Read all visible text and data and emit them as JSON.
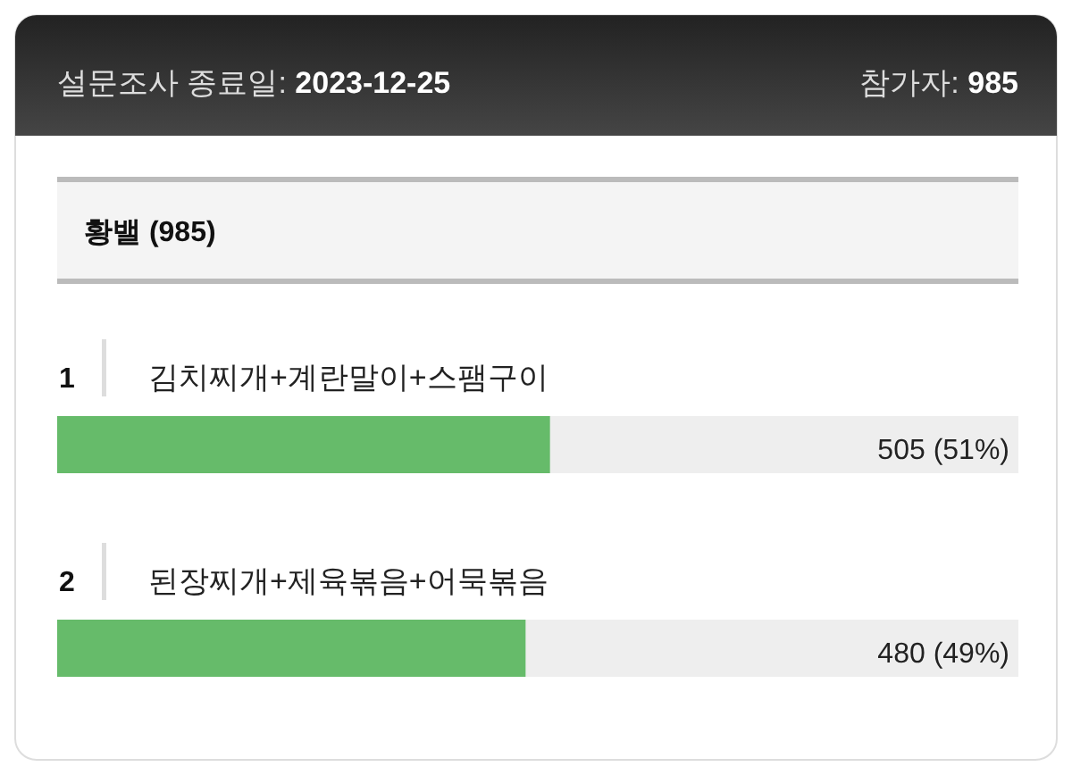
{
  "chart_data": {
    "type": "bar",
    "orientation": "horizontal",
    "title": "황밸 (985)",
    "categories": [
      "김치찌개+계란말이+스팸구이",
      "된장찌개+제육볶음+어묵볶음"
    ],
    "values": [
      505,
      480
    ],
    "color": "#66bb6a",
    "value_labels": [
      "505 (51%)",
      "480 (49%)"
    ],
    "xlim": [
      0,
      985
    ],
    "tick_labels": "y",
    "annotations": [
      "설문조사 종료일: 2023-12-25",
      "참가자: 985",
      "1",
      "2"
    ]
  }
}
